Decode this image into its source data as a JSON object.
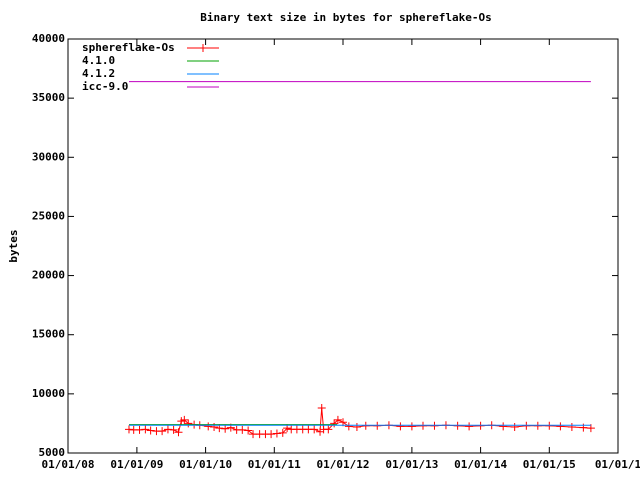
{
  "chart_data": {
    "type": "line",
    "title": "Binary text size in bytes for sphereflake-Os",
    "y_label": "bytes",
    "xlim": [
      "2008-01-01",
      "2016-01-01"
    ],
    "xticks": [
      {
        "value": "2008-01-01",
        "label": "01/01/08"
      },
      {
        "value": "2009-01-01",
        "label": "01/01/09"
      },
      {
        "value": "2010-01-01",
        "label": "01/01/10"
      },
      {
        "value": "2011-01-01",
        "label": "01/01/11"
      },
      {
        "value": "2012-01-01",
        "label": "01/01/12"
      },
      {
        "value": "2013-01-01",
        "label": "01/01/13"
      },
      {
        "value": "2014-01-01",
        "label": "01/01/14"
      },
      {
        "value": "2015-01-01",
        "label": "01/01/15"
      },
      {
        "value": "2016-01-01",
        "label": "01/01/1"
      }
    ],
    "ylim": [
      5000,
      40000
    ],
    "yticks": [
      5000,
      10000,
      15000,
      20000,
      25000,
      30000,
      35000,
      40000
    ],
    "legend": "top-left",
    "series": [
      {
        "name": "sphereflake-Os",
        "color": "#ff0000",
        "markers": true,
        "x": [
          "2008-11-20",
          "2008-12-15",
          "2009-01-15",
          "2009-02-15",
          "2009-03-15",
          "2009-04-15",
          "2009-05-15",
          "2009-06-15",
          "2009-07-15",
          "2009-08-10",
          "2009-08-25",
          "2009-09-10",
          "2009-10-01",
          "2009-11-01",
          "2009-12-01",
          "2010-01-15",
          "2010-02-15",
          "2010-03-15",
          "2010-04-15",
          "2010-05-15",
          "2010-06-15",
          "2010-07-15",
          "2010-08-15",
          "2010-09-10",
          "2010-10-15",
          "2010-11-15",
          "2010-12-15",
          "2011-01-15",
          "2011-02-15",
          "2011-03-10",
          "2011-04-01",
          "2011-05-01",
          "2011-06-01",
          "2011-07-01",
          "2011-08-01",
          "2011-09-01",
          "2011-09-10",
          "2011-09-20",
          "2011-10-15",
          "2011-11-15",
          "2011-12-05",
          "2012-01-01",
          "2012-02-01",
          "2012-03-15",
          "2012-05-01",
          "2012-07-01",
          "2012-09-01",
          "2012-11-01",
          "2013-01-01",
          "2013-03-01",
          "2013-05-01",
          "2013-07-01",
          "2013-09-01",
          "2013-11-01",
          "2014-01-01",
          "2014-03-01",
          "2014-05-01",
          "2014-07-01",
          "2014-09-01",
          "2014-11-01",
          "2015-01-01",
          "2015-03-01",
          "2015-05-01",
          "2015-07-01",
          "2015-08-10"
        ],
        "values": [
          7000,
          6950,
          6950,
          7000,
          6900,
          6850,
          6850,
          7000,
          6950,
          6750,
          7700,
          7800,
          7500,
          7400,
          7350,
          7250,
          7200,
          7100,
          7050,
          7150,
          6950,
          6950,
          6900,
          6600,
          6600,
          6600,
          6600,
          6650,
          6700,
          7100,
          7000,
          7000,
          7000,
          7000,
          7000,
          6800,
          8800,
          7000,
          7000,
          7500,
          7800,
          7600,
          7250,
          7200,
          7300,
          7300,
          7350,
          7250,
          7250,
          7300,
          7300,
          7350,
          7300,
          7250,
          7300,
          7350,
          7250,
          7200,
          7300,
          7300,
          7300,
          7250,
          7200,
          7150,
          7100
        ]
      },
      {
        "name": "4.1.0",
        "color": "#00a000",
        "markers": false,
        "x": [
          "2008-11-20",
          "2011-12-01"
        ],
        "values": [
          7400,
          7400
        ]
      },
      {
        "name": "4.1.2",
        "color": "#0080ff",
        "markers": false,
        "x": [
          "2008-11-20",
          "2015-08-10"
        ],
        "values": [
          7350,
          7350
        ]
      },
      {
        "name": "icc-9.0",
        "color": "#c000c0",
        "markers": false,
        "x": [
          "2008-11-20",
          "2015-08-10"
        ],
        "values": [
          36400,
          36400
        ]
      }
    ]
  }
}
